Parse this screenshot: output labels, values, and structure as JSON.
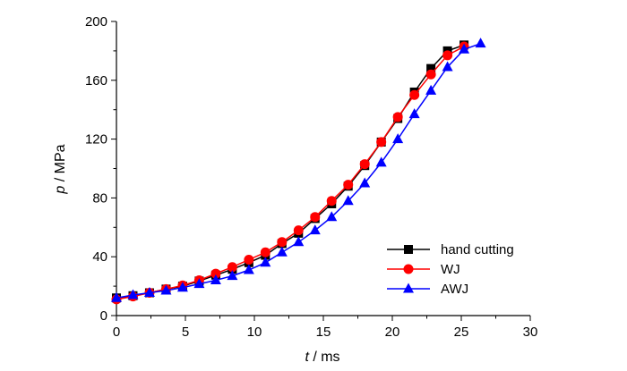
{
  "chart_data": {
    "type": "line",
    "xlabel": {
      "var": "t",
      "unit": " / ms"
    },
    "ylabel": {
      "var": "p",
      "unit": " / MPa"
    },
    "xlim": [
      0,
      30
    ],
    "ylim": [
      0,
      200
    ],
    "x_ticks": [
      0,
      5,
      10,
      15,
      20,
      25,
      30
    ],
    "y_ticks": [
      0,
      40,
      80,
      120,
      160,
      200
    ],
    "grid": false,
    "legend_position": "bottom-right",
    "series": [
      {
        "name": "hand cutting",
        "color": "#000000",
        "marker": "square",
        "points": [
          [
            0,
            12
          ],
          [
            1.2,
            13.5
          ],
          [
            2.4,
            15.5
          ],
          [
            3.6,
            18
          ],
          [
            4.8,
            20
          ],
          [
            6,
            23.5
          ],
          [
            7.2,
            27.5
          ],
          [
            8.4,
            31.5
          ],
          [
            9.6,
            36
          ],
          [
            10.8,
            41
          ],
          [
            12,
            49
          ],
          [
            13.2,
            56
          ],
          [
            14.4,
            66
          ],
          [
            15.6,
            76
          ],
          [
            16.8,
            88
          ],
          [
            18,
            102
          ],
          [
            19.2,
            118
          ],
          [
            20.4,
            134
          ],
          [
            21.6,
            152
          ],
          [
            22.8,
            168
          ],
          [
            24,
            180
          ],
          [
            25.2,
            184
          ]
        ]
      },
      {
        "name": "WJ",
        "color": "#ff0000",
        "marker": "circle",
        "points": [
          [
            0,
            11
          ],
          [
            1.2,
            13
          ],
          [
            2.4,
            15.5
          ],
          [
            3.6,
            18
          ],
          [
            4.8,
            20.5
          ],
          [
            6,
            24
          ],
          [
            7.2,
            28.5
          ],
          [
            8.4,
            33
          ],
          [
            9.6,
            38
          ],
          [
            10.8,
            43
          ],
          [
            12,
            50
          ],
          [
            13.2,
            58
          ],
          [
            14.4,
            67
          ],
          [
            15.6,
            78
          ],
          [
            16.8,
            89
          ],
          [
            18,
            103
          ],
          [
            19.2,
            118
          ],
          [
            20.4,
            135
          ],
          [
            21.6,
            150
          ],
          [
            22.8,
            164
          ],
          [
            24,
            177
          ],
          [
            25.2,
            183
          ]
        ]
      },
      {
        "name": "AWJ",
        "color": "#0000ff",
        "marker": "triangle",
        "points": [
          [
            0,
            12
          ],
          [
            1.2,
            14
          ],
          [
            2.4,
            15.5
          ],
          [
            3.6,
            17
          ],
          [
            4.8,
            19
          ],
          [
            6,
            21.5
          ],
          [
            7.2,
            24
          ],
          [
            8.4,
            27
          ],
          [
            9.6,
            31
          ],
          [
            10.8,
            36
          ],
          [
            12,
            43
          ],
          [
            13.2,
            50
          ],
          [
            14.4,
            58
          ],
          [
            15.6,
            67
          ],
          [
            16.8,
            78
          ],
          [
            18,
            90
          ],
          [
            19.2,
            104
          ],
          [
            20.4,
            120
          ],
          [
            21.6,
            137
          ],
          [
            22.8,
            153
          ],
          [
            24,
            169
          ],
          [
            25.2,
            181
          ],
          [
            26.4,
            185
          ]
        ]
      }
    ]
  }
}
